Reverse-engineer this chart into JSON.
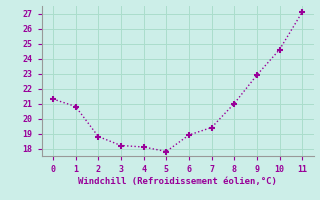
{
  "x": [
    0,
    1,
    2,
    3,
    4,
    5,
    6,
    7,
    8,
    9,
    10,
    11
  ],
  "y": [
    21.3,
    20.8,
    18.8,
    18.2,
    18.1,
    17.8,
    18.9,
    19.4,
    21.0,
    22.9,
    24.6,
    27.1
  ],
  "line_color": "#990099",
  "marker": "+",
  "marker_size": 5,
  "marker_color": "#990099",
  "bg_color": "#cceee8",
  "grid_color": "#aaddcc",
  "xlabel": "Windchill (Refroidissement éolien,°C)",
  "xlabel_color": "#990099",
  "tick_color": "#990099",
  "spine_color": "#999999",
  "ylim": [
    17.5,
    27.5
  ],
  "xlim": [
    -0.5,
    11.5
  ],
  "yticks": [
    18,
    19,
    20,
    21,
    22,
    23,
    24,
    25,
    26,
    27
  ],
  "xticks": [
    0,
    1,
    2,
    3,
    4,
    5,
    6,
    7,
    8,
    9,
    10,
    11
  ],
  "linewidth": 1.0,
  "line_style": ":"
}
